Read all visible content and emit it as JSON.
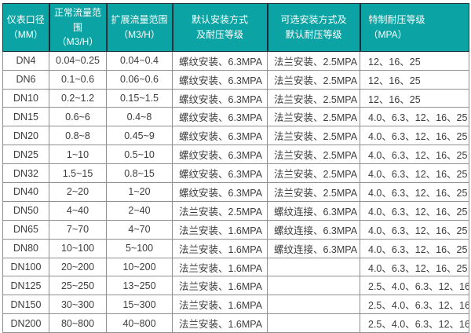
{
  "colors": {
    "header_bg": "#0ba3a3",
    "header_text": "#ffffff",
    "header_divider": "#1e2e38",
    "body_text": "#3d3d3d",
    "border": "#8f8f8f",
    "row_bg": "#ffffff",
    "page_bg": "#ffffff"
  },
  "table": {
    "columns": [
      {
        "id": "diameter",
        "label": "仪表口径\n（MM）"
      },
      {
        "id": "normal-flow",
        "label": "正常流量范围\n（M3/H）"
      },
      {
        "id": "extended-flow",
        "label": "扩展流量范围\n（M3/H）"
      },
      {
        "id": "default-install",
        "label": "默认安装方式\n及耐压等级"
      },
      {
        "id": "optional-install",
        "label": "可选安装方式及\n默认耐压等级"
      },
      {
        "id": "special-rating",
        "label": "特制耐压等级\n（MPA）"
      }
    ],
    "rows": [
      [
        "DN4",
        "0.04~0.25",
        "0.04~0.4",
        "螺纹安装、6.3MPA",
        "法兰安装、2.5MPA",
        "12、16、25"
      ],
      [
        "DN6",
        "0.1~0.6",
        "0.06~0.6",
        "螺纹安装、6.3MPA",
        "法兰安装、2.5MPA",
        "12、16、25"
      ],
      [
        "DN10",
        "0.2~1.2",
        "0.15~1.5",
        "螺纹安装、6.3MPA",
        "法兰安装、2.5MPA",
        "12、16、25"
      ],
      [
        "DN15",
        "0.6~6",
        "0.4~8",
        "螺纹安装、6.3MPA",
        "法兰安装、2.5MPA",
        "4.0、6.3、12、16、25"
      ],
      [
        "DN20",
        "0.8~8",
        "0.45~9",
        "螺纹安装、6.3MPA",
        "法兰安装、2.5MPA",
        "4.0、6.3、12、16、25"
      ],
      [
        "DN25",
        "1~10",
        "0.5~10",
        "螺纹安装、6.3MPA",
        "法兰安装、2.5MPA",
        "4.0、6.3、12、16、25"
      ],
      [
        "DN32",
        "1.5~15",
        "0.8~15",
        "螺纹安装、6.3MPA",
        "法兰安装、2.5MPA",
        "4.0、6.3、12、16、25"
      ],
      [
        "DN40",
        "2~20",
        "1~20",
        "螺纹安装、6.3MPA",
        "法兰安装、2.5MPA",
        "4.0、6.3、12、16、25"
      ],
      [
        "DN50",
        "4~40",
        "2~40",
        "法兰安装、2.5MPA",
        "螺纹连接、6.3MPA",
        "4.0、6.3、12、16、25"
      ],
      [
        "DN65",
        "7~70",
        "4~70",
        "法兰安装、1.6MPA",
        "螺纹连接、6.3MPA",
        "4.0、6.3、12、16、25"
      ],
      [
        "DN80",
        "10~100",
        "5~100",
        "法兰安装、1.6MPA",
        "螺纹连接、6.3MPA",
        "4.0、6.3、12、16、25"
      ],
      [
        "DN100",
        "20~200",
        "10~200",
        "法兰安装、1.6MPA",
        "",
        "4.0、6.3、12、16、25"
      ],
      [
        "DN125",
        "25~250",
        "13~250",
        "法兰安装、1.6MPA",
        "",
        "2.5、4.0、6.3、12、16"
      ],
      [
        "DN150",
        "30~300",
        "15~300",
        "法兰安装、1.6MPA",
        "",
        "2.5、4.0、6.3、12、16"
      ],
      [
        "DN200",
        "80~800",
        "40~800",
        "法兰安装、1.6MPA",
        "",
        "2.5、4.0、6.3、12、16"
      ]
    ]
  }
}
